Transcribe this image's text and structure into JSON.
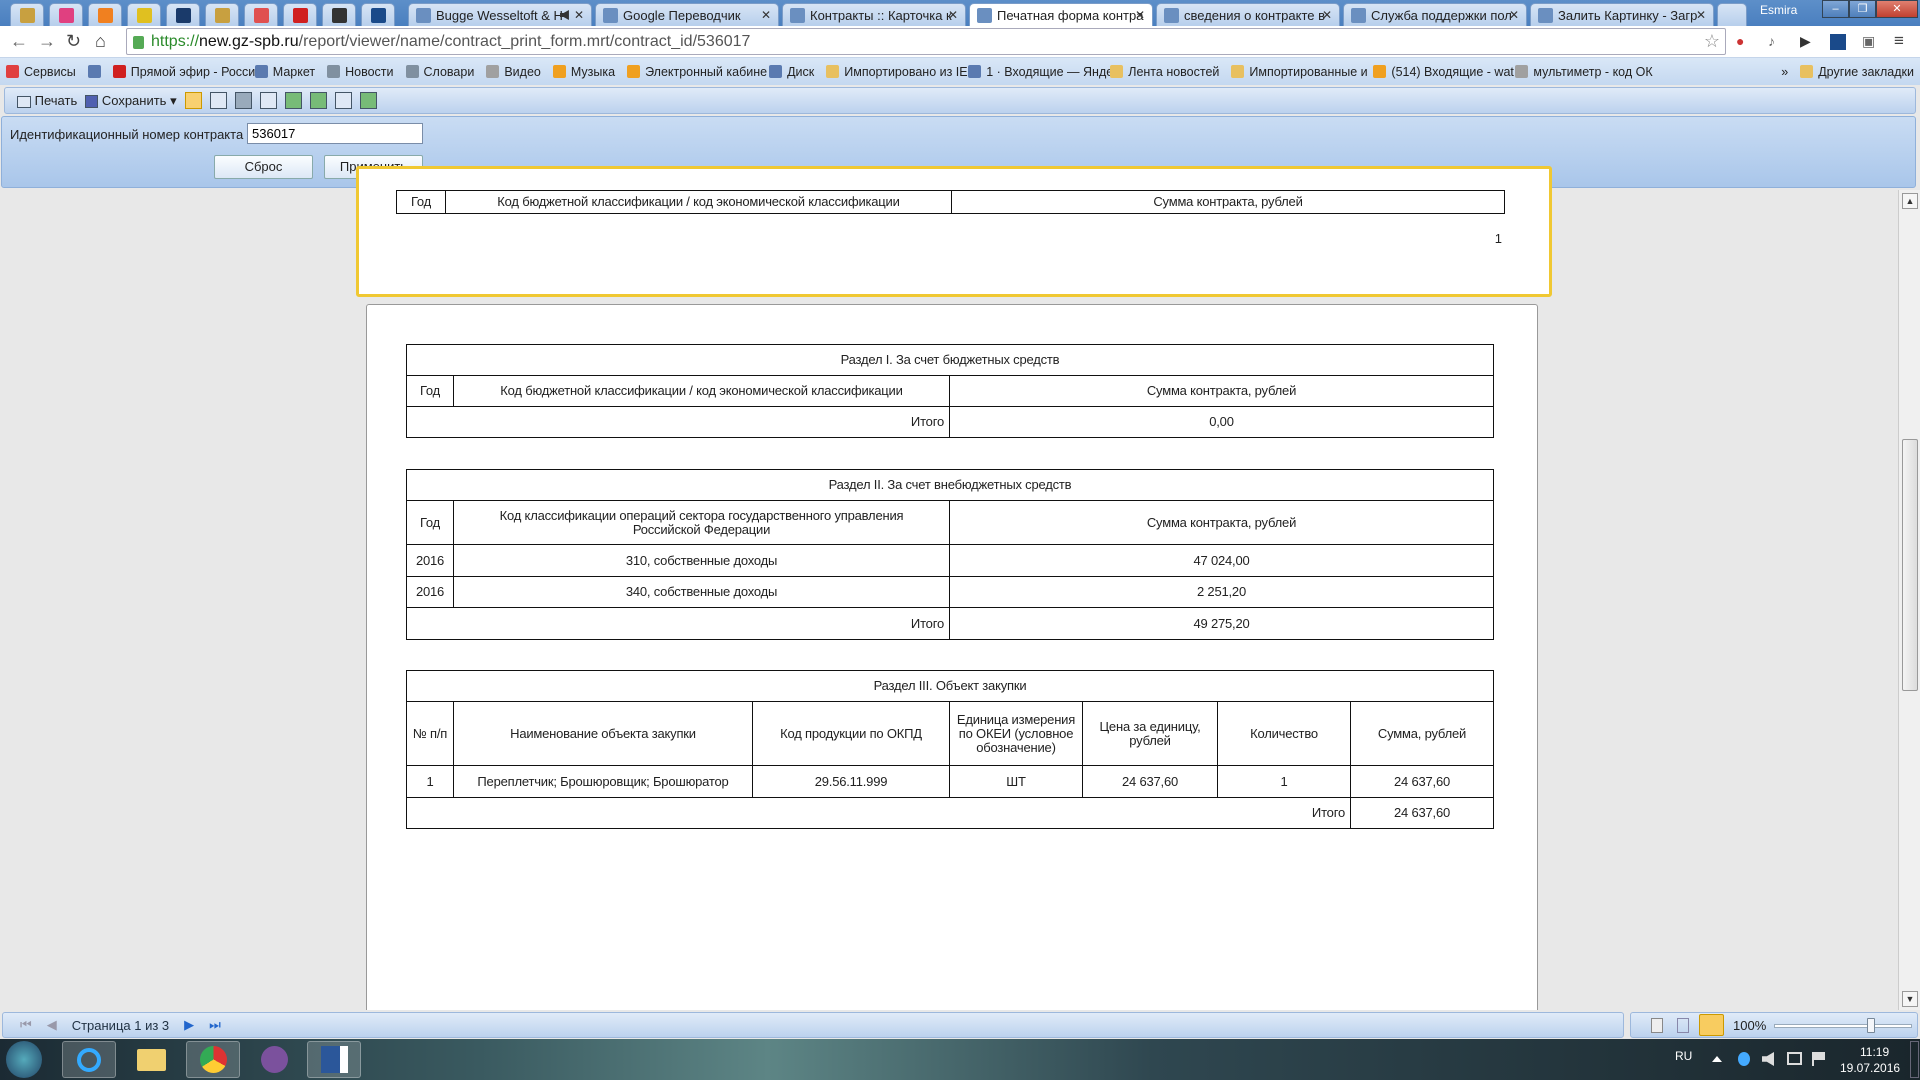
{
  "browser": {
    "pinned_tabs": [
      {
        "icon": "russian-emblem-icon",
        "color": "#c8a040"
      },
      {
        "icon": "pinwheel-icon",
        "color": "#e04080"
      },
      {
        "icon": "rss-r-icon",
        "color": "#f08020"
      },
      {
        "icon": "pencil-icon",
        "color": "#e0c020"
      },
      {
        "icon": "arrow-logo-icon",
        "color": "#1a3a6a"
      },
      {
        "icon": "russian-emblem-icon",
        "color": "#c8a040"
      },
      {
        "icon": "pdf-doc-icon",
        "color": "#e05050"
      },
      {
        "icon": "checkmark-icon",
        "color": "#d02020"
      },
      {
        "icon": "g-logo-icon",
        "color": "#333333"
      },
      {
        "icon": "b-logo-icon",
        "color": "#1a4a8a"
      }
    ],
    "tabs": [
      {
        "label": "Bugge Wesseltoft & H",
        "icon": "play-icon",
        "audio": true
      },
      {
        "label": "Google Переводчик",
        "icon": "google-translate-icon"
      },
      {
        "label": "Контракты :: Карточка к",
        "icon": "gavel-icon"
      },
      {
        "label": "Печатная форма контра",
        "icon": "gavel-icon",
        "active": true
      },
      {
        "label": "сведения о контракте в",
        "icon": "help-icon"
      },
      {
        "label": "Служба поддержки пол",
        "icon": "mail-at-icon"
      },
      {
        "label": "Залить Картинку - Загр",
        "icon": "image-icon"
      }
    ],
    "user": "Esmira",
    "url": {
      "scheme": "https://",
      "host": "new.gz-spb.ru",
      "path": "/report/viewer/name/contract_print_form.mrt/contract_id/536017"
    },
    "bookmarks": [
      {
        "label": "Сервисы",
        "color": "#e04040"
      },
      {
        "label": "",
        "color": "#5a7ab0"
      },
      {
        "label": "Прямой эфир - Росси",
        "color": "#d02020"
      },
      {
        "label": "Маркет",
        "color": "#5a7ab0"
      },
      {
        "label": "Новости",
        "color": "#8090a0"
      },
      {
        "label": "Словари",
        "color": "#8090a0"
      },
      {
        "label": "Видео",
        "color": "#a0a0a0"
      },
      {
        "label": "Музыка",
        "color": "#f0a020"
      },
      {
        "label": "Электронный кабине",
        "color": "#f0a020"
      },
      {
        "label": "Диск",
        "color": "#5a7ab0"
      },
      {
        "label": "Импортировано из IE",
        "color": "#e8c060"
      },
      {
        "label": "1 · Входящие — Янде",
        "color": "#5a7ab0"
      },
      {
        "label": "Лента новостей",
        "color": "#e8c060"
      },
      {
        "label": "Импортированные и",
        "color": "#e8c060"
      },
      {
        "label": "(514) Входящие - wat",
        "color": "#f0a020"
      },
      {
        "label": "мультиметр - код ОК",
        "color": "#a0a0a0"
      }
    ],
    "more_bookmarks": "»",
    "other_bookmarks": "Другие закладки"
  },
  "report_toolbar": {
    "print": "Печать",
    "save": "Сохранить"
  },
  "params": {
    "label": "Идентификационный номер контракта",
    "value": "536017",
    "reset": "Сброс",
    "apply": "Применить"
  },
  "page1": {
    "header": [
      "Год",
      "Код бюджетной классификации / код экономической классификации",
      "Сумма контракта, рублей"
    ],
    "page_number": "1"
  },
  "section1": {
    "title": "Раздел I. За счет бюджетных средств",
    "header": [
      "Год",
      "Код бюджетной классификации / код экономической классификации",
      "Сумма контракта, рублей"
    ],
    "total_label": "Итого",
    "total": "0,00"
  },
  "section2": {
    "title": "Раздел II. За счет внебюджетных средств",
    "header": [
      "Год",
      "Код классификации операций сектора государственного управления Российской Федерации",
      "Сумма контракта, рублей"
    ],
    "rows": [
      [
        "2016",
        "310, собственные доходы",
        "47 024,00"
      ],
      [
        "2016",
        "340, собственные доходы",
        "2 251,20"
      ]
    ],
    "total_label": "Итого",
    "total": "49 275,20"
  },
  "section3": {
    "title": "Раздел III. Объект закупки",
    "header": [
      "№ п/п",
      "Наименование объекта закупки",
      "Код продукции по ОКПД",
      "Единица измерения по ОКЕИ (условное обозначение)",
      "Цена за единицу, рублей",
      "Количество",
      "Сумма, рублей"
    ],
    "rows": [
      [
        "1",
        "Переплетчик; Брошюровщик; Брошюратор",
        "29.56.11.999",
        "ШТ",
        "24 637,60",
        "1",
        "24 637,60"
      ]
    ],
    "total_label": "Итого",
    "total": "24 637,60"
  },
  "status": {
    "page_info": "Страница 1 из 3",
    "zoom": "100%",
    "zoom_percent": 100
  },
  "taskbar": {
    "apps": [
      "start-orb",
      "internet-explorer",
      "file-explorer",
      "chrome",
      "viber",
      "word"
    ],
    "lang": "RU",
    "time": "11:19",
    "date": "19.07.2016"
  }
}
